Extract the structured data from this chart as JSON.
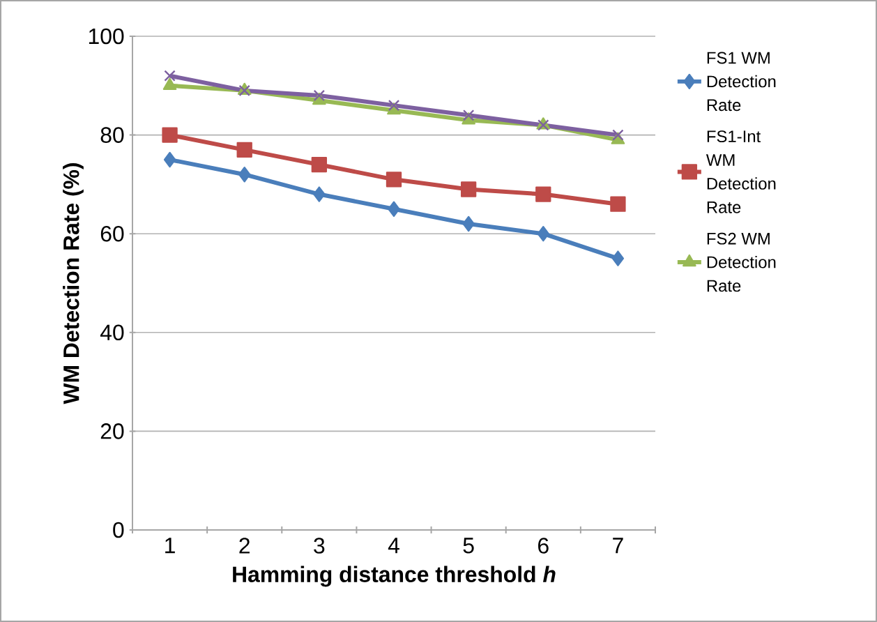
{
  "chart_data": {
    "type": "line",
    "xlabel": "Hamming distance threshold *h*",
    "ylabel": "WM Detection Rate (%)",
    "categories": [
      "1",
      "2",
      "3",
      "4",
      "5",
      "6",
      "7"
    ],
    "series": [
      {
        "name": "FS1 WM Detection Rate",
        "color": "#4a7ebb",
        "marker": "diamond",
        "values": [
          75,
          72,
          68,
          65,
          62,
          60,
          55
        ]
      },
      {
        "name": "FS1-Int WM Detection Rate",
        "color": "#be4b48",
        "marker": "square",
        "values": [
          80,
          77,
          74,
          71,
          69,
          68,
          66
        ]
      },
      {
        "name": "FS2 WM Detection Rate",
        "color": "#98b954",
        "marker": "triangle",
        "values": [
          90,
          89,
          87,
          85,
          83,
          82,
          79
        ]
      },
      {
        "color": "#7d60a0",
        "marker": "cross",
        "values": [
          92,
          89,
          88,
          86,
          84,
          82,
          80
        ]
      }
    ],
    "ylim": [
      0,
      100
    ],
    "yticks": [
      0,
      20,
      40,
      60,
      80,
      100
    ],
    "grid": "y",
    "legend": "right"
  }
}
